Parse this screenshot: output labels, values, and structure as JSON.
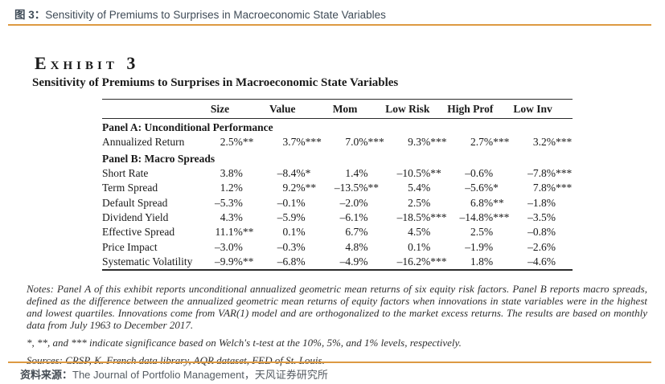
{
  "page": {
    "fig_label": "图 3：",
    "fig_title": "Sensitivity of Premiums to Surprises in Macroeconomic State Variables",
    "source_label": "资料来源：",
    "source_text": "The Journal of Portfolio Management，天风证券研究所",
    "accent_color": "#dd9a42"
  },
  "exhibit": {
    "title": "Exhibit 3",
    "subtitle": "Sensitivity of Premiums to Surprises in Macroeconomic State Variables"
  },
  "table": {
    "columns": [
      "Size",
      "Value",
      "Mom",
      "Low Risk",
      "High Prof",
      "Low Inv"
    ],
    "sections": [
      {
        "header": "Panel A: Unconditional Performance",
        "rows": [
          {
            "label": "Annualized Return",
            "values": [
              "2.5%**",
              "3.7%***",
              "7.0%***",
              "9.3%***",
              "2.7%***",
              "3.2%***"
            ]
          }
        ]
      },
      {
        "header": "Panel B: Macro Spreads",
        "rows": [
          {
            "label": "Short Rate",
            "values": [
              "3.8%",
              "–8.4%*",
              "1.4%",
              "–10.5%**",
              "–0.6%",
              "–7.8%***"
            ]
          },
          {
            "label": "Term Spread",
            "values": [
              "1.2%",
              "9.2%**",
              "–13.5%**",
              "5.4%",
              "–5.6%*",
              "7.8%***"
            ]
          },
          {
            "label": "Default Spread",
            "values": [
              "–5.3%",
              "–0.1%",
              "–2.0%",
              "2.5%",
              "6.8%**",
              "–1.8%"
            ]
          },
          {
            "label": "Dividend Yield",
            "values": [
              "4.3%",
              "–5.9%",
              "–6.1%",
              "–18.5%***",
              "–14.8%***",
              "–3.5%"
            ]
          },
          {
            "label": "Effective Spread",
            "values": [
              "11.1%**",
              "0.1%",
              "6.7%",
              "4.5%",
              "2.5%",
              "–0.8%"
            ]
          },
          {
            "label": "Price Impact",
            "values": [
              "–3.0%",
              "–0.3%",
              "4.8%",
              "0.1%",
              "–1.9%",
              "–2.6%"
            ]
          },
          {
            "label": "Systematic Volatility",
            "values": [
              "–9.9%**",
              "–6.8%",
              "–4.9%",
              "–16.2%***",
              "1.8%",
              "–4.6%"
            ]
          }
        ]
      }
    ]
  },
  "notes": {
    "notes_text": "Notes: Panel A of this exhibit reports unconditional annualized geometric mean returns of six equity risk factors. Panel B reports macro spreads, defined as the difference between the annualized geometric mean returns of equity factors when innovations in state variables were in the highest and lowest quartiles. Innovations come from VAR(1) model and are orthogonalized to the market excess returns. The results are based on monthly data from July 1963 to December 2017.",
    "significance_text": "*, **, and *** indicate significance based on Welch's t-test at the 10%, 5%, and 1% levels, respectively.",
    "sources_text": "Sources: CRSP, K. French data library, AQR dataset, FED of St. Louis."
  }
}
